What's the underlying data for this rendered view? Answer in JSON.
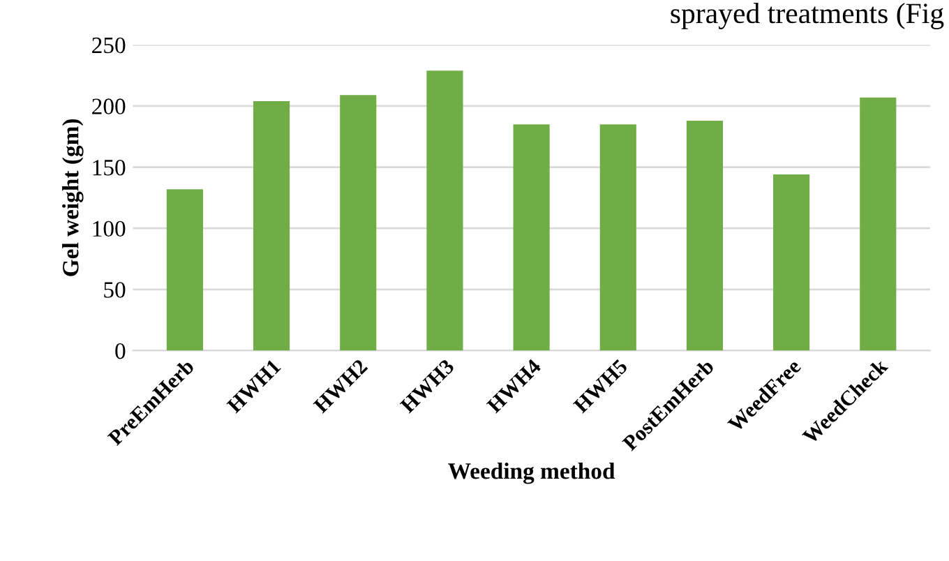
{
  "chart_data": {
    "type": "bar",
    "xlabel": "Weeding method",
    "ylabel": "Gel weight (gm)",
    "categories": [
      "PreEmHerb",
      "HWH1",
      "HWH2",
      "HWH3",
      "HWH4",
      "HWH5",
      "PostEmHerb",
      "WeedFree",
      "WeedCheck"
    ],
    "values": [
      132,
      204,
      209,
      229,
      185,
      185,
      188,
      144,
      207
    ],
    "color": "#70ad47",
    "ylim": [
      0,
      250
    ],
    "yticks": [
      0,
      50,
      100,
      150,
      200,
      250
    ],
    "grid": "y",
    "annotations": [
      "sprayed treatments (Fig"
    ]
  }
}
